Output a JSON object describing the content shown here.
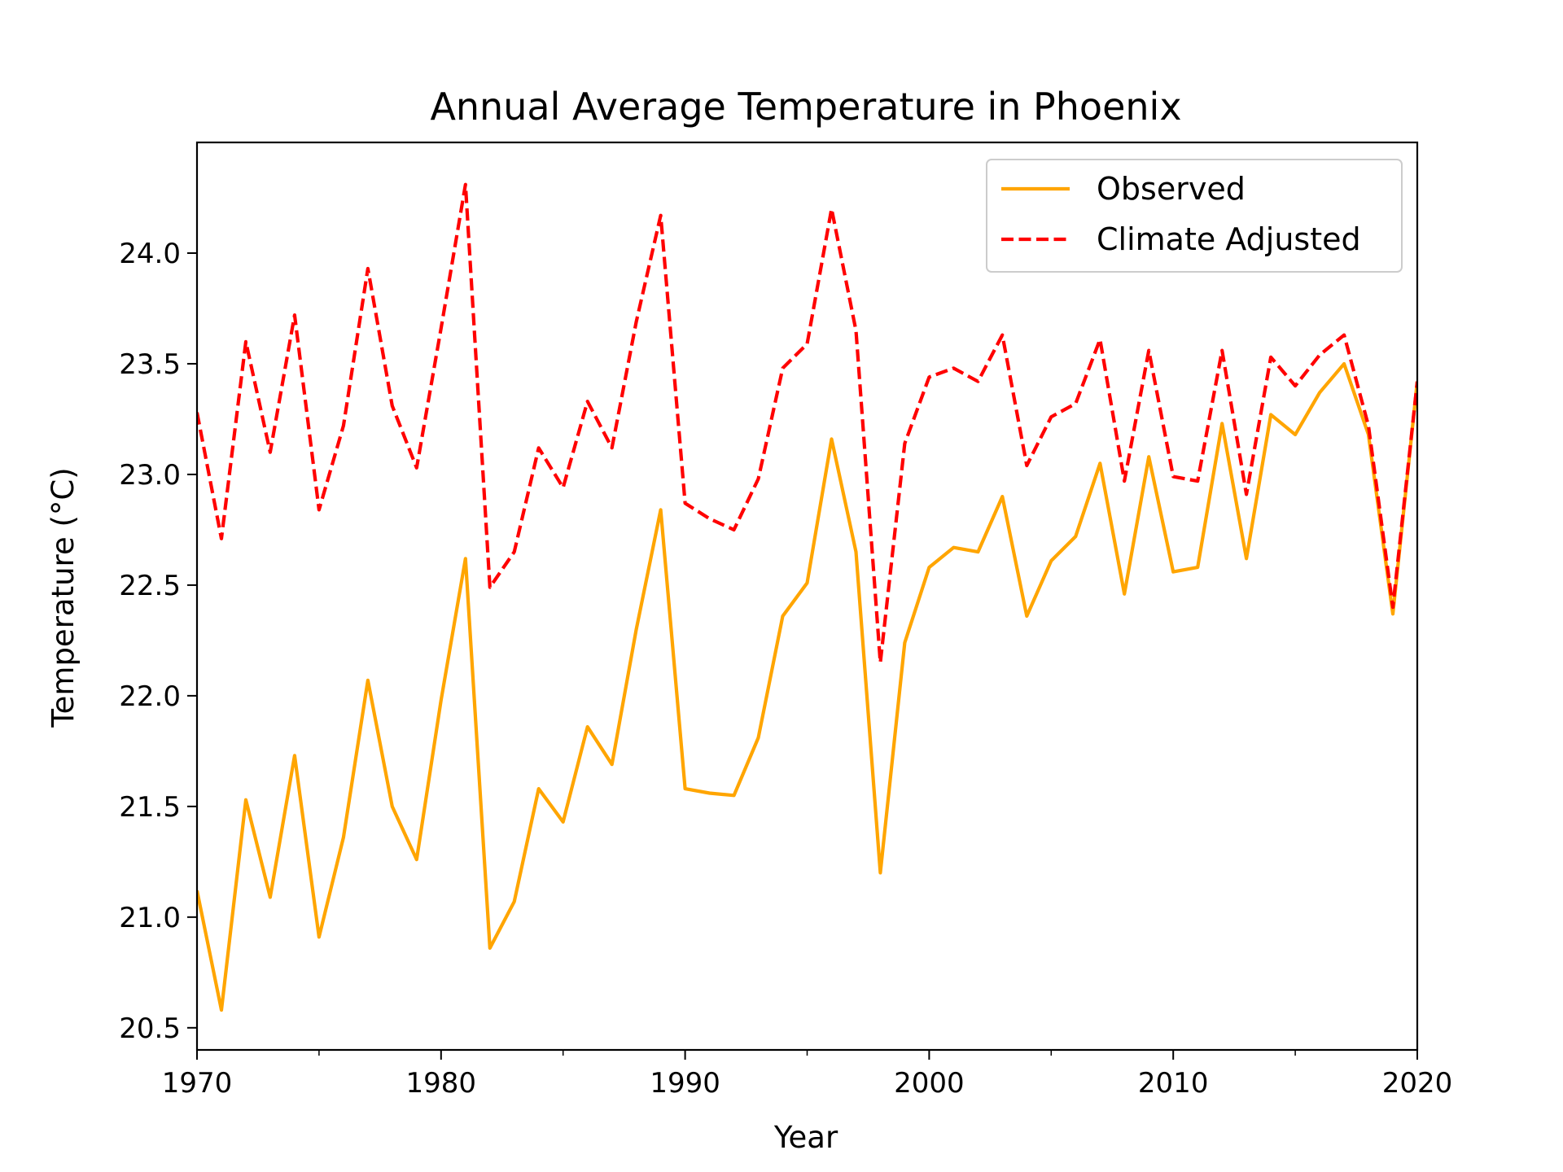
{
  "chart_data": {
    "type": "line",
    "title": "Annual Average Temperature in Phoenix",
    "xlabel": "Year",
    "ylabel": "Temperature (°C)",
    "xlim": [
      1970,
      2020
    ],
    "ylim": [
      20.4,
      24.5
    ],
    "xticks": [
      1970,
      1980,
      1990,
      2000,
      2010,
      2020
    ],
    "xtick_labels": [
      "1970",
      "1980",
      "1990",
      "2000",
      "2010",
      "2020"
    ],
    "xminor_step": 5,
    "yticks": [
      20.5,
      21.0,
      21.5,
      22.0,
      22.5,
      23.0,
      23.5,
      24.0
    ],
    "ytick_labels": [
      "20.5",
      "21.0",
      "21.5",
      "22.0",
      "22.5",
      "23.0",
      "23.5",
      "24.0"
    ],
    "legend_position": "top-right",
    "grid": false,
    "x": [
      1970,
      1971,
      1972,
      1973,
      1974,
      1975,
      1976,
      1977,
      1978,
      1979,
      1980,
      1981,
      1982,
      1983,
      1984,
      1985,
      1986,
      1987,
      1988,
      1989,
      1990,
      1991,
      1992,
      1993,
      1994,
      1995,
      1996,
      1997,
      1998,
      1999,
      2000,
      2001,
      2002,
      2003,
      2004,
      2005,
      2006,
      2007,
      2008,
      2009,
      2010,
      2011,
      2012,
      2013,
      2014,
      2015,
      2016,
      2017,
      2018,
      2019,
      2020
    ],
    "series": [
      {
        "name": "Observed",
        "color": "#FFA500",
        "style": "solid",
        "values": [
          21.12,
          20.58,
          21.53,
          21.09,
          21.73,
          20.91,
          21.36,
          22.07,
          21.5,
          21.26,
          21.98,
          22.62,
          20.86,
          21.07,
          21.58,
          21.43,
          21.86,
          21.69,
          22.3,
          22.84,
          21.58,
          21.56,
          21.55,
          21.81,
          22.36,
          22.51,
          23.16,
          22.65,
          21.2,
          22.24,
          22.58,
          22.67,
          22.65,
          22.9,
          22.36,
          22.61,
          22.72,
          23.05,
          22.46,
          23.08,
          22.56,
          22.58,
          23.23,
          22.62,
          23.27,
          23.18,
          23.37,
          23.5,
          23.18,
          22.37,
          23.42
        ]
      },
      {
        "name": "Climate Adjusted",
        "color": "#FF0000",
        "style": "dashed",
        "values": [
          23.28,
          22.71,
          23.6,
          23.1,
          23.72,
          22.84,
          23.22,
          23.93,
          23.31,
          23.03,
          23.66,
          24.31,
          22.49,
          22.65,
          23.12,
          22.94,
          23.33,
          23.12,
          23.69,
          24.17,
          22.87,
          22.8,
          22.75,
          22.98,
          23.48,
          23.59,
          24.2,
          23.65,
          22.15,
          23.14,
          23.44,
          23.48,
          23.42,
          23.63,
          23.04,
          23.26,
          23.32,
          23.61,
          22.97,
          23.56,
          22.99,
          22.97,
          23.56,
          22.91,
          23.53,
          23.4,
          23.54,
          23.63,
          23.22,
          22.4,
          23.42
        ]
      }
    ]
  }
}
